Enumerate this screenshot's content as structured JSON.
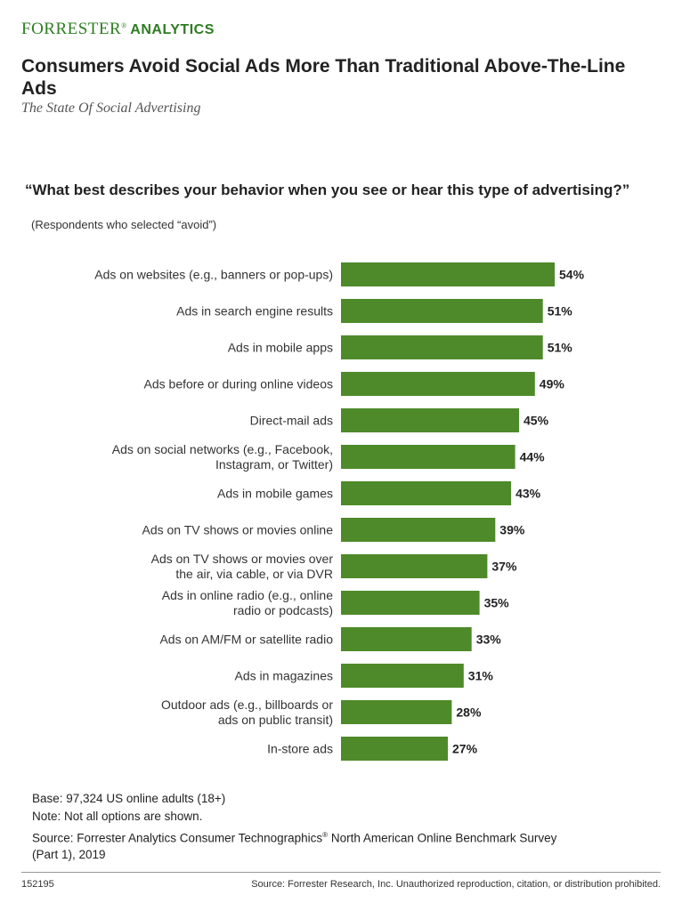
{
  "brand": {
    "name": "Forrester",
    "registered": "®",
    "product": "ANALYTICS"
  },
  "title": "Consumers Avoid Social Ads More Than Traditional Above-The-Line Ads",
  "subtitle": "The State Of Social Advertising",
  "question": "“What best describes your behavior when you see or hear this type of advertising?”",
  "question_note": "(Respondents who selected “avoid”)",
  "colors": {
    "bar": "#4e8a2a",
    "brand": "#2e7d22"
  },
  "chart_data": {
    "type": "bar",
    "orientation": "horizontal",
    "categories": [
      "Ads on websites (e.g., banners or pop-ups)",
      "Ads in search engine results",
      "Ads in mobile apps",
      "Ads before or during online videos",
      "Direct-mail ads",
      "Ads on social networks (e.g., Facebook, Instagram, or Twitter)",
      "Ads in mobile games",
      "Ads on TV shows or movies online",
      "Ads on TV shows or movies over the air, via cable, or via DVR",
      "Ads in online radio (e.g., online radio or podcasts)",
      "Ads on AM/FM or satellite radio",
      "Ads in magazines",
      "Outdoor ads (e.g., billboards or ads on public transit)",
      "In-store ads"
    ],
    "category_lines": [
      [
        "Ads on websites (e.g., banners or pop-ups)"
      ],
      [
        "Ads in search engine results"
      ],
      [
        "Ads in mobile apps"
      ],
      [
        "Ads before or during online videos"
      ],
      [
        "Direct-mail ads"
      ],
      [
        "Ads on social networks (e.g., Facebook,",
        "Instagram, or Twitter)"
      ],
      [
        "Ads in mobile games"
      ],
      [
        "Ads on TV shows or movies online"
      ],
      [
        "Ads on TV shows or movies over",
        "the air, via cable, or via DVR"
      ],
      [
        "Ads in online radio (e.g., online",
        "radio or podcasts)"
      ],
      [
        "Ads on AM/FM or satellite radio"
      ],
      [
        "Ads in magazines"
      ],
      [
        "Outdoor ads (e.g., billboards or",
        "ads on public transit)"
      ],
      [
        "In-store ads"
      ]
    ],
    "values": [
      54,
      51,
      51,
      49,
      45,
      44,
      43,
      39,
      37,
      35,
      33,
      31,
      28,
      27
    ],
    "value_labels": [
      "54%",
      "51%",
      "51%",
      "49%",
      "45%",
      "44%",
      "43%",
      "39%",
      "37%",
      "35%",
      "33%",
      "31%",
      "28%",
      "27%"
    ],
    "unit": "%",
    "xlim": [
      0,
      54
    ],
    "grid": false,
    "legend": "none"
  },
  "footnotes": {
    "base": "Base: 97,324 US online adults (18+)",
    "note": "Note: Not all options are shown.",
    "source_before": "Source: Forrester Analytics Consumer Technographics",
    "source_reg": "®",
    "source_after": " North American Online Benchmark Survey",
    "source_line2": "(Part 1), 2019"
  },
  "footer": {
    "doc_id": "152195",
    "rights": "Source: Forrester Research, Inc. Unauthorized reproduction, citation, or distribution prohibited."
  }
}
